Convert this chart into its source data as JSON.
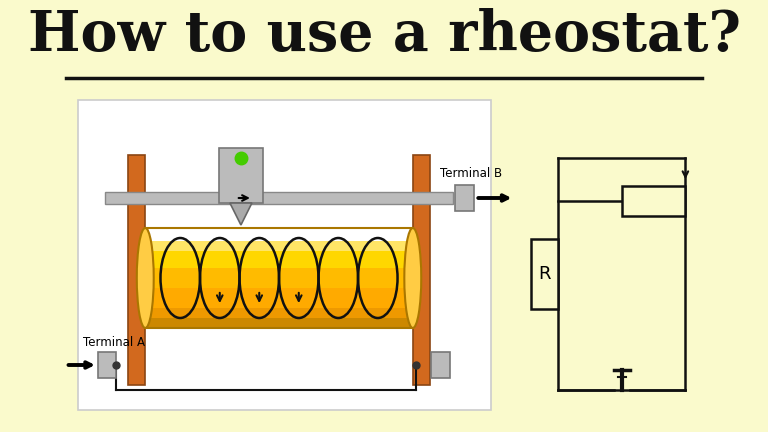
{
  "bg_color": "#FAFACC",
  "title": "How to use a rheostat?",
  "title_fontsize": 40,
  "title_color": "#111111",
  "wood_color": "#D2691E",
  "wood_edge_color": "#8B4513",
  "rod_color": "#AAAAAA",
  "rod_edge_color": "#888888",
  "cyl_colors": [
    "#FFE566",
    "#FFD700",
    "#FFAA00",
    "#CC8800"
  ],
  "slider_color": "#BBBBBB",
  "slider_edge": "#777777",
  "green_dot": "#44CC00",
  "coil_color": "#111111",
  "terminal_color": "#AAAAAA",
  "terminal_edge": "#777777",
  "arrow_color": "#111111",
  "terminal_a": "Terminal A",
  "terminal_b": "Terminal B",
  "circuit_color": "#111111",
  "circuit_lw": 1.8
}
